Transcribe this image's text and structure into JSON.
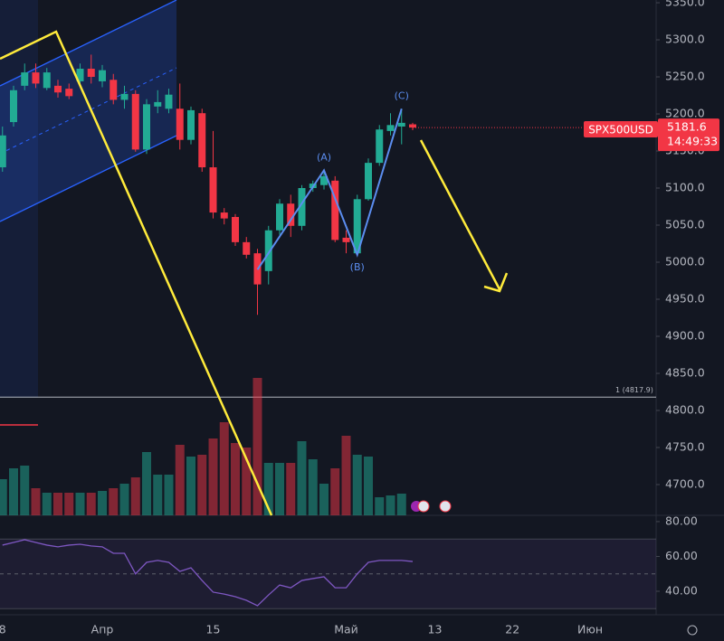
{
  "chart_data": {
    "type": "candlestick",
    "symbol": "SPX500USD",
    "last_price": 5181.6,
    "countdown": "14:49:33",
    "categories": [
      "8",
      null,
      null,
      null,
      null,
      null,
      null,
      null,
      null,
      "Апр",
      null,
      null,
      null,
      null,
      null,
      null,
      null,
      null,
      null,
      "15",
      null,
      null,
      null,
      null,
      null,
      null,
      null,
      null,
      null,
      null,
      null,
      "Май",
      null,
      null,
      null,
      null,
      null,
      null,
      null,
      "13",
      null,
      null,
      null,
      null,
      null,
      null,
      "22",
      null,
      null,
      null,
      null,
      null,
      null,
      "Июн"
    ],
    "open": [
      5128,
      5189,
      5238,
      5256,
      5235,
      5238,
      5234,
      5244,
      5261,
      5244,
      5246,
      5219,
      5227,
      5152,
      5210,
      5207,
      5207,
      5165,
      5201,
      5128,
      5067,
      5061,
      5027,
      5012,
      4988,
      5043,
      5079,
      5049,
      5100,
      5104,
      5110,
      5033,
      5012,
      5085,
      5134,
      5177,
      5183,
      5186,
      null,
      null,
      null,
      null,
      null,
      null,
      null,
      null,
      null,
      null,
      null,
      null,
      null,
      null,
      null,
      null
    ],
    "high": [
      5183,
      5238,
      5268,
      5268,
      5262,
      5246,
      5241,
      5268,
      5280,
      5266,
      5254,
      5238,
      5232,
      5220,
      5232,
      5234,
      5241,
      5210,
      5207,
      5177,
      5073,
      5065,
      5034,
      5018,
      5049,
      5085,
      5091,
      5104,
      5110,
      5124,
      5116,
      5043,
      5091,
      5140,
      5185,
      5201,
      5207,
      5188,
      null,
      null,
      null,
      null,
      null,
      null,
      null,
      null,
      null,
      null,
      null,
      null,
      null,
      null,
      null,
      null
    ],
    "low": [
      5122,
      5183,
      5232,
      5235,
      5232,
      5222,
      5220,
      5238,
      5241,
      5236,
      5213,
      5207,
      5149,
      5146,
      5201,
      5201,
      5152,
      5159,
      5122,
      5059,
      5051,
      5022,
      5005,
      4929,
      4970,
      5037,
      5034,
      5043,
      5095,
      5098,
      5027,
      5012,
      5010,
      5083,
      5130,
      5171,
      5159,
      5178,
      null,
      null,
      null,
      null,
      null,
      null,
      null,
      null,
      null,
      null,
      null,
      null,
      null,
      null,
      null,
      null
    ],
    "close": [
      5171,
      5232,
      5256,
      5241,
      5256,
      5229,
      5224,
      5261,
      5250,
      5259,
      5219,
      5227,
      5152,
      5213,
      5216,
      5226,
      5165,
      5205,
      5128,
      5067,
      5059,
      5027,
      5010,
      4970,
      5043,
      5079,
      5049,
      5100,
      5106,
      5116,
      5030,
      5027,
      5085,
      5134,
      5179,
      5185,
      5188,
      5181.6,
      null,
      null,
      null,
      null,
      null,
      null,
      null,
      null,
      null,
      null,
      null,
      null,
      null,
      null,
      null,
      null
    ],
    "volume": [
      40,
      52,
      55,
      30,
      25,
      25,
      25,
      25,
      25,
      27,
      30,
      35,
      42,
      70,
      45,
      45,
      78,
      65,
      67,
      85,
      103,
      80,
      75,
      152,
      58,
      58,
      58,
      82,
      62,
      35,
      52,
      88,
      67,
      65,
      20,
      22,
      24,
      null,
      null,
      null,
      null,
      null,
      null,
      null,
      null,
      null,
      null,
      null,
      null,
      null,
      null,
      null,
      null,
      null
    ],
    "volume_ylim": [
      0,
      160
    ],
    "rsi": [
      66.5,
      68,
      69.6,
      68,
      66.5,
      65.5,
      66.5,
      67,
      66,
      65.5,
      61.8,
      61.8,
      50,
      56.6,
      57.7,
      56.6,
      51.4,
      53.5,
      46.2,
      39.5,
      38.4,
      36.9,
      34.8,
      31.7,
      37.9,
      43.6,
      42,
      46.2,
      47.3,
      48.3,
      42,
      42,
      50,
      56.6,
      57.7,
      57.7,
      57.7,
      57.1,
      null,
      null,
      null,
      null,
      null,
      null,
      null,
      null,
      null,
      null,
      null,
      null,
      null,
      null,
      null,
      null
    ],
    "up_color": "#22ab94",
    "down_color": "#f23645",
    "rsi_color": "#7e57c2",
    "ylim": [
      4658.5,
      5353.7
    ],
    "yticks": [
      {
        "value": 5350,
        "label": "5350.0"
      },
      {
        "value": 5300,
        "label": "5300.0"
      },
      {
        "value": 5250,
        "label": "5250.0"
      },
      {
        "value": 5200,
        "label": "5200.0"
      },
      {
        "value": 5150,
        "label": "5150.0"
      },
      {
        "value": 5100,
        "label": "5100.0"
      },
      {
        "value": 5050,
        "label": "5050.0"
      },
      {
        "value": 5000,
        "label": "5000.0"
      },
      {
        "value": 4950,
        "label": "4950.0"
      },
      {
        "value": 4900,
        "label": "4900.0"
      },
      {
        "value": 4850,
        "label": "4850.0"
      },
      {
        "value": 4800,
        "label": "4800.0"
      },
      {
        "value": 4750,
        "label": "4750.0"
      },
      {
        "value": 4700,
        "label": "4700.0"
      }
    ],
    "rsi_ylim": [
      26.5,
      83.6
    ],
    "rsi_yticks": [
      {
        "value": 80,
        "label": "80.00"
      },
      {
        "value": 60,
        "label": "60.00"
      },
      {
        "value": 40,
        "label": "40.00"
      }
    ],
    "rsi_bands": [
      30,
      70
    ],
    "rsi_midline": 50,
    "hline": {
      "value": 4817.9,
      "label": "1 (4817.9)"
    },
    "waves": [
      {
        "index": 23,
        "price": 4990
      },
      {
        "index": 29,
        "price": 5124,
        "label": "(A)"
      },
      {
        "index": 32,
        "price": 5010,
        "label": "(B)"
      },
      {
        "index": 36,
        "price": 5207,
        "label": "(C)"
      }
    ]
  }
}
